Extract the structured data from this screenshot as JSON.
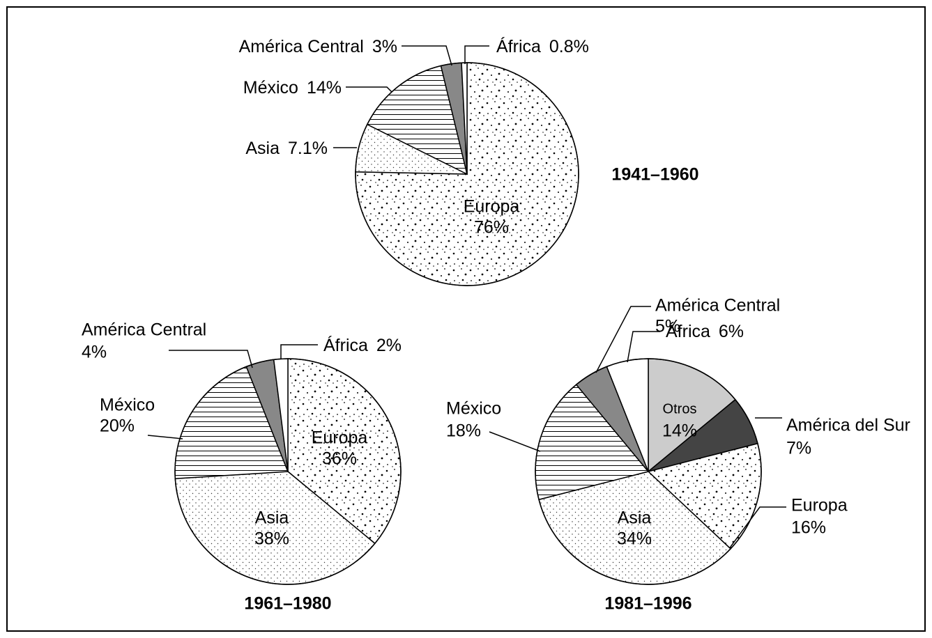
{
  "chart_data": [
    {
      "type": "pie",
      "title": "1941–1960",
      "categories": [
        "Europa",
        "Asia",
        "México",
        "América Central",
        "África"
      ],
      "values": [
        76,
        7.1,
        14,
        3,
        0.8
      ],
      "value_labels": [
        "76%",
        "7.1%",
        "14%",
        "3%",
        "0.8%"
      ],
      "fills": [
        "dots-dense",
        "dots-light",
        "hlines",
        "#888888",
        "#ffffff"
      ]
    },
    {
      "type": "pie",
      "title": "1961–1980",
      "categories": [
        "Europa",
        "Asia",
        "México",
        "América Central",
        "África"
      ],
      "values": [
        36,
        38,
        20,
        4,
        2
      ],
      "value_labels": [
        "36%",
        "38%",
        "20%",
        "4%",
        "2%"
      ],
      "fills": [
        "dots-dense",
        "dots-light",
        "hlines",
        "#888888",
        "#ffffff"
      ]
    },
    {
      "type": "pie",
      "title": "1981–1996",
      "categories": [
        "Otros",
        "América del Sur",
        "Europa",
        "Asia",
        "México",
        "América Central",
        "África"
      ],
      "values": [
        14,
        7,
        16,
        34,
        18,
        5,
        6
      ],
      "value_labels": [
        "14%",
        "7%",
        "16%",
        "34%",
        "18%",
        "5%",
        "6%"
      ],
      "fills": [
        "#cccccc",
        "#444444",
        "dots-dense",
        "dots-light",
        "hlines",
        "#888888",
        "#ffffff"
      ]
    }
  ]
}
